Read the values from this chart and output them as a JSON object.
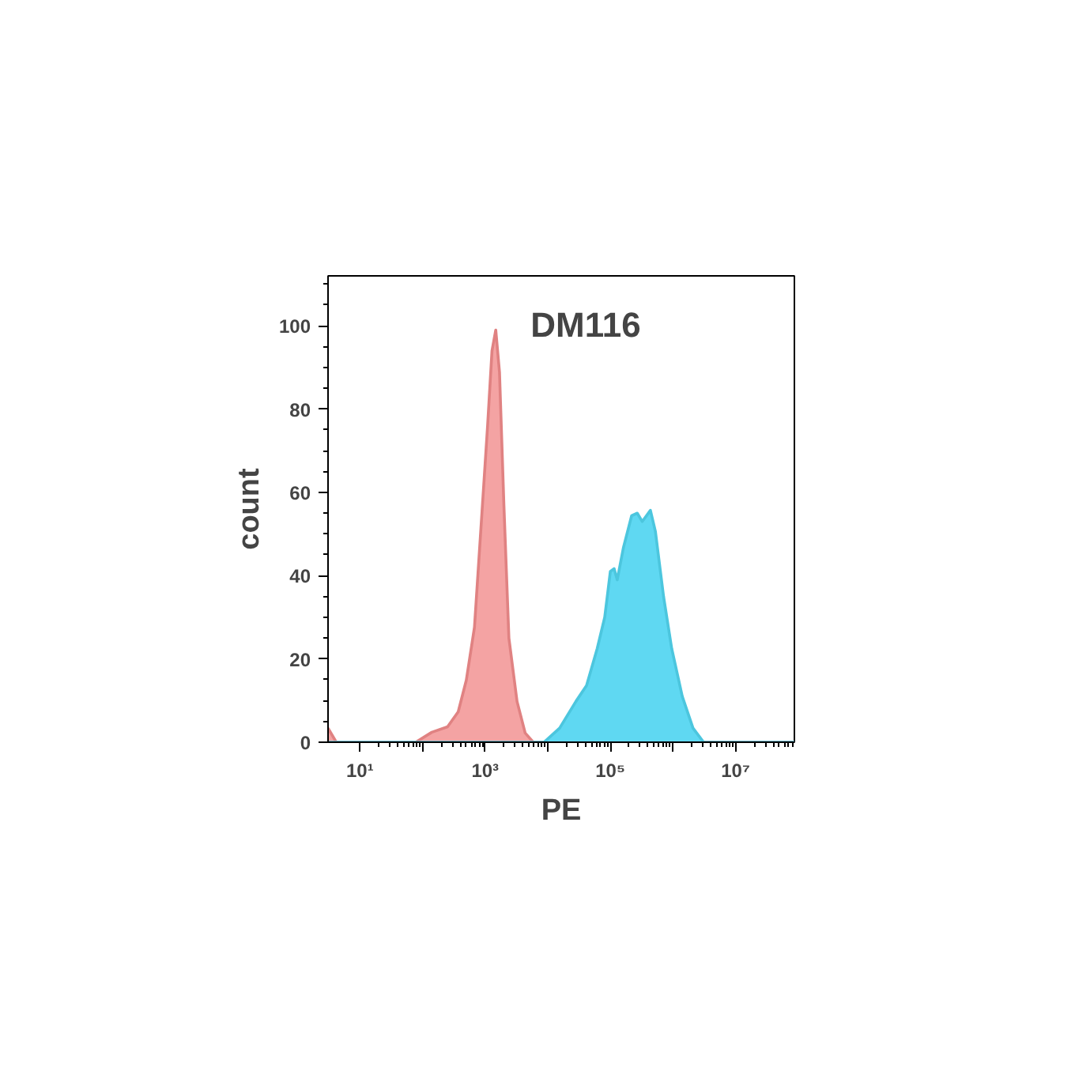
{
  "chart_data": {
    "type": "area",
    "title": "DM116",
    "xlabel": "PE",
    "ylabel": "count",
    "log": "x",
    "grid": false,
    "xlim": [
      3.1,
      87000000
    ],
    "ylim": [
      0,
      112
    ],
    "xticks": [
      {
        "value": 10,
        "label": "10¹"
      },
      {
        "value": 100,
        "label": null
      },
      {
        "value": 1000,
        "label": "10³"
      },
      {
        "value": 10000,
        "label": null
      },
      {
        "value": 100000,
        "label": "10⁵"
      },
      {
        "value": 1000000,
        "label": null
      },
      {
        "value": 10000000,
        "label": "10⁷"
      }
    ],
    "yticks": [
      0,
      20,
      40,
      60,
      80,
      100
    ],
    "series": [
      {
        "color": "#f4a3a3",
        "x": [
          3.1,
          4.2,
          78,
          141,
          251,
          372,
          501,
          676,
          851,
          1096,
          1288,
          1479,
          1698,
          1995,
          2399,
          3236,
          4365,
          5888,
          87000000
        ],
        "values": [
          3.4,
          0,
          0,
          2.4,
          3.7,
          7.3,
          14.9,
          27.6,
          50.6,
          76,
          94,
          99,
          88.8,
          57,
          25,
          9.8,
          2.2,
          0,
          0
        ]
      },
      {
        "color": "#5fd8f2",
        "x": [
          3.1,
          8710,
          15500,
          28200,
          41700,
          61700,
          81300,
          100000,
          114800,
          128800,
          162200,
          218800,
          269200,
          323600,
          436500,
          524800,
          708000,
          955000,
          1410000,
          2090000,
          3090000,
          87000000
        ],
        "values": [
          0,
          0,
          3.4,
          9.8,
          13.6,
          22.5,
          30,
          41,
          41.7,
          39,
          46.8,
          54.4,
          55,
          53,
          55.7,
          50.6,
          35,
          22.5,
          11,
          3.4,
          0,
          0
        ]
      }
    ]
  }
}
